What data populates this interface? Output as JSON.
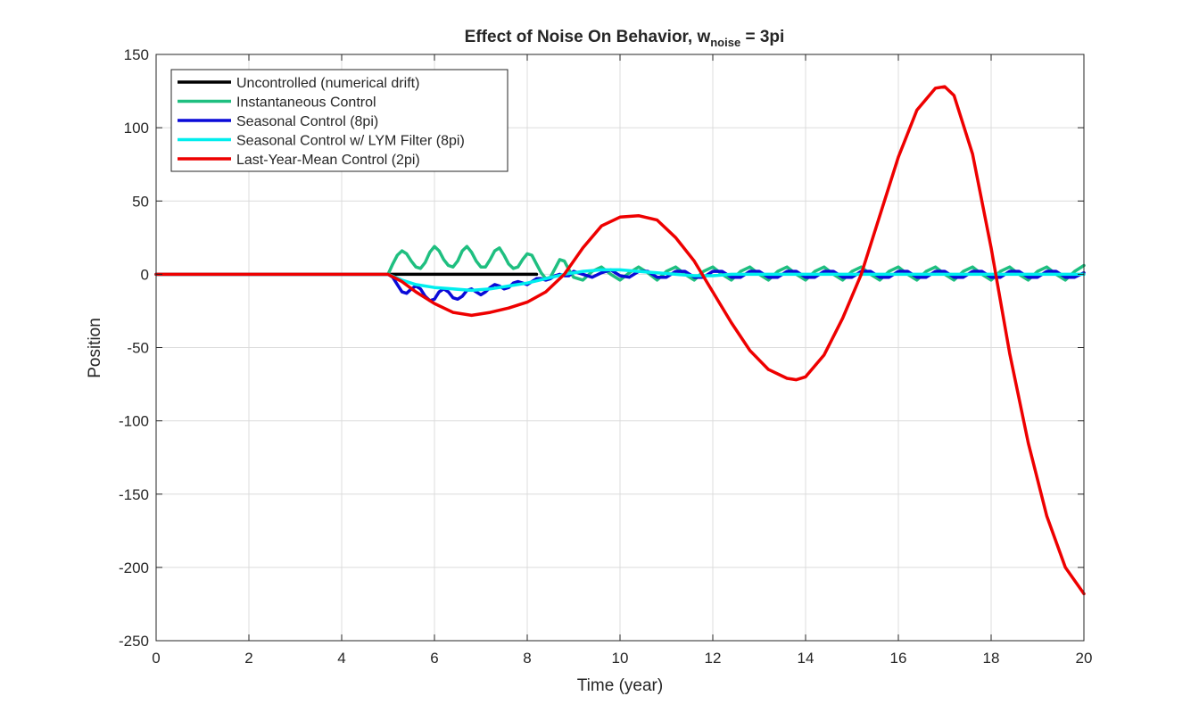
{
  "chart_data": {
    "type": "line",
    "title": "Effect of Noise On Behavior, w",
    "title_subscript": "noise",
    "title_suffix": " = 3pi",
    "xlabel": "Time (year)",
    "ylabel": "Position",
    "xlim": [
      0,
      20
    ],
    "ylim": [
      -250,
      150
    ],
    "xticks": [
      0,
      2,
      4,
      6,
      8,
      10,
      12,
      14,
      16,
      18,
      20
    ],
    "yticks": [
      -250,
      -200,
      -150,
      -100,
      -50,
      0,
      50,
      100,
      150
    ],
    "grid": true,
    "legend_position": "top-left",
    "series": [
      {
        "name": "Uncontrolled (numerical drift)",
        "color": "#000000",
        "x": [
          0,
          5,
          8.2
        ],
        "y": [
          0,
          0,
          0
        ]
      },
      {
        "name": "Instantaneous Control",
        "color": "#1fbf80",
        "x": [
          0,
          5,
          5.1,
          5.2,
          5.3,
          5.4,
          5.5,
          5.6,
          5.7,
          5.8,
          5.9,
          6.0,
          6.1,
          6.2,
          6.3,
          6.4,
          6.5,
          6.6,
          6.7,
          6.8,
          6.9,
          7.0,
          7.1,
          7.2,
          7.3,
          7.4,
          7.5,
          7.6,
          7.7,
          7.8,
          7.9,
          8.0,
          8.1,
          8.2,
          8.3,
          8.4,
          8.5,
          8.6,
          8.7,
          8.8,
          8.9,
          9.0,
          9.2,
          9.4,
          9.6,
          9.8,
          10.0,
          10.2,
          10.4,
          10.6,
          10.8,
          11.0,
          11.2,
          11.4,
          11.6,
          11.8,
          12.0,
          12.2,
          12.4,
          12.6,
          12.8,
          13.0,
          13.2,
          13.4,
          13.6,
          13.8,
          14.0,
          14.2,
          14.4,
          14.6,
          14.8,
          15.0,
          15.2,
          15.4,
          15.6,
          15.8,
          16.0,
          16.2,
          16.4,
          16.6,
          16.8,
          17.0,
          17.2,
          17.4,
          17.6,
          17.8,
          18.0,
          18.2,
          18.4,
          18.6,
          18.8,
          19.0,
          19.2,
          19.4,
          19.6,
          19.8,
          20.0
        ],
        "y": [
          0,
          0,
          7,
          13,
          16,
          14,
          9,
          5,
          4,
          8,
          15,
          19,
          16,
          10,
          6,
          5,
          9,
          16,
          19,
          15,
          9,
          5,
          5,
          10,
          16,
          18,
          13,
          7,
          4,
          5,
          10,
          14,
          13,
          7,
          1,
          -3,
          -2,
          4,
          10,
          9,
          3,
          -2,
          -4,
          2,
          5,
          0,
          -4,
          1,
          5,
          1,
          -4,
          2,
          5,
          0,
          -4,
          2,
          5,
          0,
          -4,
          2,
          5,
          0,
          -4,
          2,
          5,
          0,
          -4,
          2,
          5,
          0,
          -4,
          2,
          5,
          0,
          -4,
          2,
          5,
          0,
          -4,
          2,
          5,
          0,
          -4,
          2,
          5,
          0,
          -4,
          2,
          5,
          0,
          -4,
          2,
          5,
          0,
          -4,
          2,
          6
        ]
      },
      {
        "name": "Seasonal Control (8pi)",
        "color": "#0a0ad8",
        "x": [
          0,
          5,
          5.1,
          5.2,
          5.3,
          5.4,
          5.5,
          5.6,
          5.7,
          5.8,
          5.9,
          6.0,
          6.1,
          6.2,
          6.3,
          6.4,
          6.5,
          6.6,
          6.7,
          6.8,
          6.9,
          7.0,
          7.1,
          7.2,
          7.3,
          7.4,
          7.5,
          7.6,
          7.7,
          7.8,
          7.9,
          8.0,
          8.1,
          8.2,
          8.3,
          8.4,
          8.5,
          8.6,
          8.7,
          8.8,
          8.9,
          9.0,
          9.2,
          9.4,
          9.6,
          9.8,
          10.0,
          10.2,
          10.4,
          10.6,
          10.8,
          11.0,
          11.2,
          11.4,
          11.6,
          11.8,
          12.0,
          12.2,
          12.4,
          12.6,
          12.8,
          13.0,
          13.2,
          13.4,
          13.6,
          13.8,
          14.0,
          14.2,
          14.4,
          14.6,
          14.8,
          15.0,
          15.2,
          15.4,
          15.6,
          15.8,
          16.0,
          16.2,
          16.4,
          16.6,
          16.8,
          17.0,
          17.2,
          17.4,
          17.6,
          17.8,
          18.0,
          18.2,
          18.4,
          18.6,
          18.8,
          19.0,
          19.2,
          19.4,
          19.6,
          19.8,
          20.0
        ],
        "y": [
          0,
          0,
          -2,
          -7,
          -12,
          -13,
          -10,
          -8,
          -10,
          -15,
          -18,
          -17,
          -12,
          -10,
          -12,
          -16,
          -17,
          -15,
          -11,
          -10,
          -12,
          -14,
          -12,
          -9,
          -7,
          -8,
          -10,
          -9,
          -6,
          -5,
          -6,
          -7,
          -5,
          -3,
          -3,
          -4,
          -3,
          -1,
          0,
          -1,
          -1,
          2,
          0,
          -2,
          1,
          3,
          -1,
          -2,
          2,
          2,
          -2,
          -2,
          2,
          2,
          -2,
          -2,
          2,
          2,
          -2,
          -2,
          2,
          2,
          -2,
          -2,
          2,
          2,
          -2,
          -2,
          2,
          2,
          -2,
          -2,
          2,
          2,
          -2,
          -2,
          2,
          2,
          -2,
          -2,
          2,
          2,
          -2,
          -2,
          2,
          2,
          -2,
          -2,
          2,
          2,
          -2,
          -2,
          2,
          2,
          -2,
          -2,
          1
        ]
      },
      {
        "name": "Seasonal Control w/ LYM Filter (8pi)",
        "color": "#00eeee",
        "x": [
          0,
          5,
          5.3,
          5.6,
          6.0,
          6.4,
          6.8,
          7.2,
          7.6,
          8.0,
          8.4,
          8.8,
          9.2,
          9.6,
          10.0,
          10.4,
          10.8,
          11.2,
          11.6,
          12.0,
          12.4,
          12.8,
          13.2,
          13.6,
          14.0,
          14.4,
          14.8,
          15.2,
          15.6,
          16.0,
          16.4,
          16.8,
          17.2,
          17.6,
          18.0,
          18.4,
          18.8,
          19.2,
          19.6,
          20.0
        ],
        "y": [
          0,
          0,
          -4,
          -7,
          -9,
          -10,
          -11,
          -10,
          -8,
          -6,
          -3,
          0,
          2,
          3,
          3,
          2,
          1,
          0,
          -1,
          -1,
          0,
          0,
          0,
          0,
          0,
          0,
          0,
          0,
          0,
          0,
          0,
          0,
          0,
          0,
          0,
          0,
          0,
          0,
          0,
          0
        ]
      },
      {
        "name": "Last-Year-Mean Control (2pi)",
        "color": "#ee0000",
        "x": [
          0,
          5,
          5.3,
          5.6,
          6.0,
          6.4,
          6.8,
          7.2,
          7.6,
          8.0,
          8.4,
          8.8,
          9.2,
          9.6,
          10.0,
          10.4,
          10.8,
          11.2,
          11.6,
          12.0,
          12.4,
          12.8,
          13.2,
          13.6,
          13.8,
          14.0,
          14.4,
          14.8,
          15.2,
          15.6,
          16.0,
          16.4,
          16.8,
          17.0,
          17.2,
          17.6,
          18.0,
          18.4,
          18.8,
          19.2,
          19.6,
          20.0
        ],
        "y": [
          0,
          0,
          -5,
          -12,
          -20,
          -26,
          -28,
          -26,
          -23,
          -19,
          -12,
          0,
          18,
          33,
          39,
          40,
          37,
          25,
          9,
          -12,
          -33,
          -52,
          -65,
          -71,
          -72,
          -70,
          -55,
          -30,
          0,
          40,
          80,
          112,
          127,
          128,
          122,
          82,
          18,
          -54,
          -115,
          -165,
          -200,
          -218
        ]
      }
    ]
  }
}
